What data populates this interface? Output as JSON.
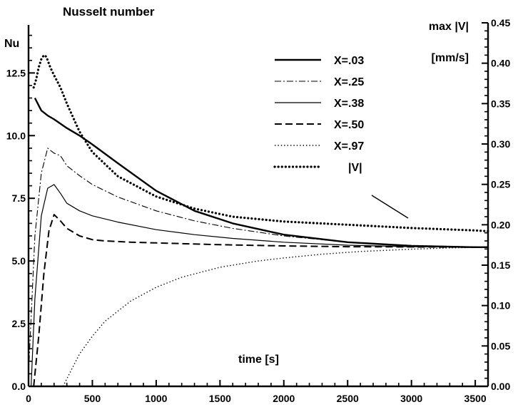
{
  "chart_data": {
    "type": "line",
    "title": "Nusselt number",
    "xlabel": "time [s]",
    "ylabel_left": "Nu",
    "ylabel_right": "max |V|",
    "ylabel_right_unit": "[mm/s]",
    "xlim": [
      0,
      3600
    ],
    "ylim_left": [
      0,
      14.5
    ],
    "ylim_right": [
      0,
      0.45
    ],
    "x_ticks": [
      0,
      500,
      1000,
      1500,
      2000,
      2500,
      3000,
      3500
    ],
    "x_tick_labels": [
      "0",
      "500",
      "1000",
      "1500",
      "2000",
      "2500",
      "3000",
      "3500"
    ],
    "y_left_ticks": [
      0,
      2.5,
      5,
      7.5,
      10,
      12.5
    ],
    "y_left_tick_labels": [
      "0.0",
      "2.5",
      "5.0",
      "7.5",
      "10.0",
      "12.5"
    ],
    "y_right_ticks": [
      0,
      0.05,
      0.1,
      0.15,
      0.2,
      0.25,
      0.3,
      0.35,
      0.4,
      0.45
    ],
    "y_right_tick_labels": [
      "0.00",
      "0.05",
      "0.10",
      "0.15",
      "0.20",
      "0.25",
      "0.30",
      "0.35",
      "0.40",
      "0.45"
    ],
    "legend_position": "top-right",
    "grid": false,
    "series": [
      {
        "name": "X=.03",
        "axis": "left",
        "style": "solid-thick",
        "x": [
          50,
          100,
          150,
          200,
          300,
          400,
          500,
          700,
          1000,
          1300,
          1600,
          2000,
          2500,
          3000,
          3500,
          3600
        ],
        "y": [
          11.5,
          11.0,
          10.8,
          10.65,
          10.3,
          10.0,
          9.65,
          8.9,
          7.8,
          7.0,
          6.5,
          6.05,
          5.75,
          5.6,
          5.55,
          5.55
        ]
      },
      {
        "name": "X=.25",
        "axis": "left",
        "style": "dash-dot",
        "x": [
          0,
          50,
          100,
          150,
          200,
          250,
          300,
          400,
          500,
          700,
          1000,
          1300,
          1600,
          2000,
          2500,
          3000,
          3500,
          3600
        ],
        "y": [
          0.5,
          6.0,
          8.5,
          9.5,
          9.3,
          9.2,
          8.8,
          8.4,
          8.05,
          7.55,
          7.0,
          6.6,
          6.3,
          6.0,
          5.75,
          5.62,
          5.56,
          5.55
        ]
      },
      {
        "name": "X=.38",
        "axis": "left",
        "style": "solid-thin",
        "x": [
          20,
          50,
          100,
          150,
          200,
          250,
          300,
          400,
          500,
          700,
          1000,
          1300,
          1600,
          2000,
          2500,
          3000,
          3500,
          3600
        ],
        "y": [
          0.0,
          3.5,
          6.8,
          7.9,
          8.05,
          7.7,
          7.3,
          7.0,
          6.8,
          6.55,
          6.25,
          6.05,
          5.9,
          5.75,
          5.63,
          5.57,
          5.55,
          5.55
        ]
      },
      {
        "name": "X=.50",
        "axis": "left",
        "style": "dashed",
        "x": [
          40,
          80,
          120,
          160,
          200,
          250,
          300,
          400,
          500,
          600,
          800,
          1000,
          1500,
          2000,
          2500,
          3000,
          3500,
          3600
        ],
        "y": [
          0.0,
          2.0,
          4.5,
          6.2,
          6.85,
          6.6,
          6.3,
          6.0,
          5.85,
          5.8,
          5.75,
          5.72,
          5.65,
          5.6,
          5.57,
          5.56,
          5.55,
          5.55
        ]
      },
      {
        "name": "X=.97",
        "axis": "left",
        "style": "dotted-fine",
        "x": [
          270,
          300,
          350,
          400,
          500,
          600,
          800,
          1000,
          1200,
          1500,
          1800,
          2000,
          2300,
          2600,
          3000,
          3300,
          3600
        ],
        "y": [
          0.0,
          0.3,
          0.8,
          1.3,
          2.0,
          2.6,
          3.4,
          3.95,
          4.35,
          4.75,
          5.0,
          5.12,
          5.27,
          5.38,
          5.47,
          5.52,
          5.55
        ]
      },
      {
        "name": "|V|",
        "axis": "right",
        "style": "dotted-bold",
        "x": [
          40,
          60,
          80,
          100,
          120,
          140,
          170,
          200,
          250,
          300,
          400,
          500,
          700,
          1000,
          1300,
          1600,
          2000,
          2500,
          3000,
          3500,
          3600
        ],
        "y": [
          0.37,
          0.38,
          0.395,
          0.405,
          0.41,
          0.408,
          0.395,
          0.385,
          0.37,
          0.35,
          0.315,
          0.29,
          0.26,
          0.235,
          0.22,
          0.21,
          0.204,
          0.2,
          0.196,
          0.193,
          0.192
        ]
      }
    ]
  }
}
